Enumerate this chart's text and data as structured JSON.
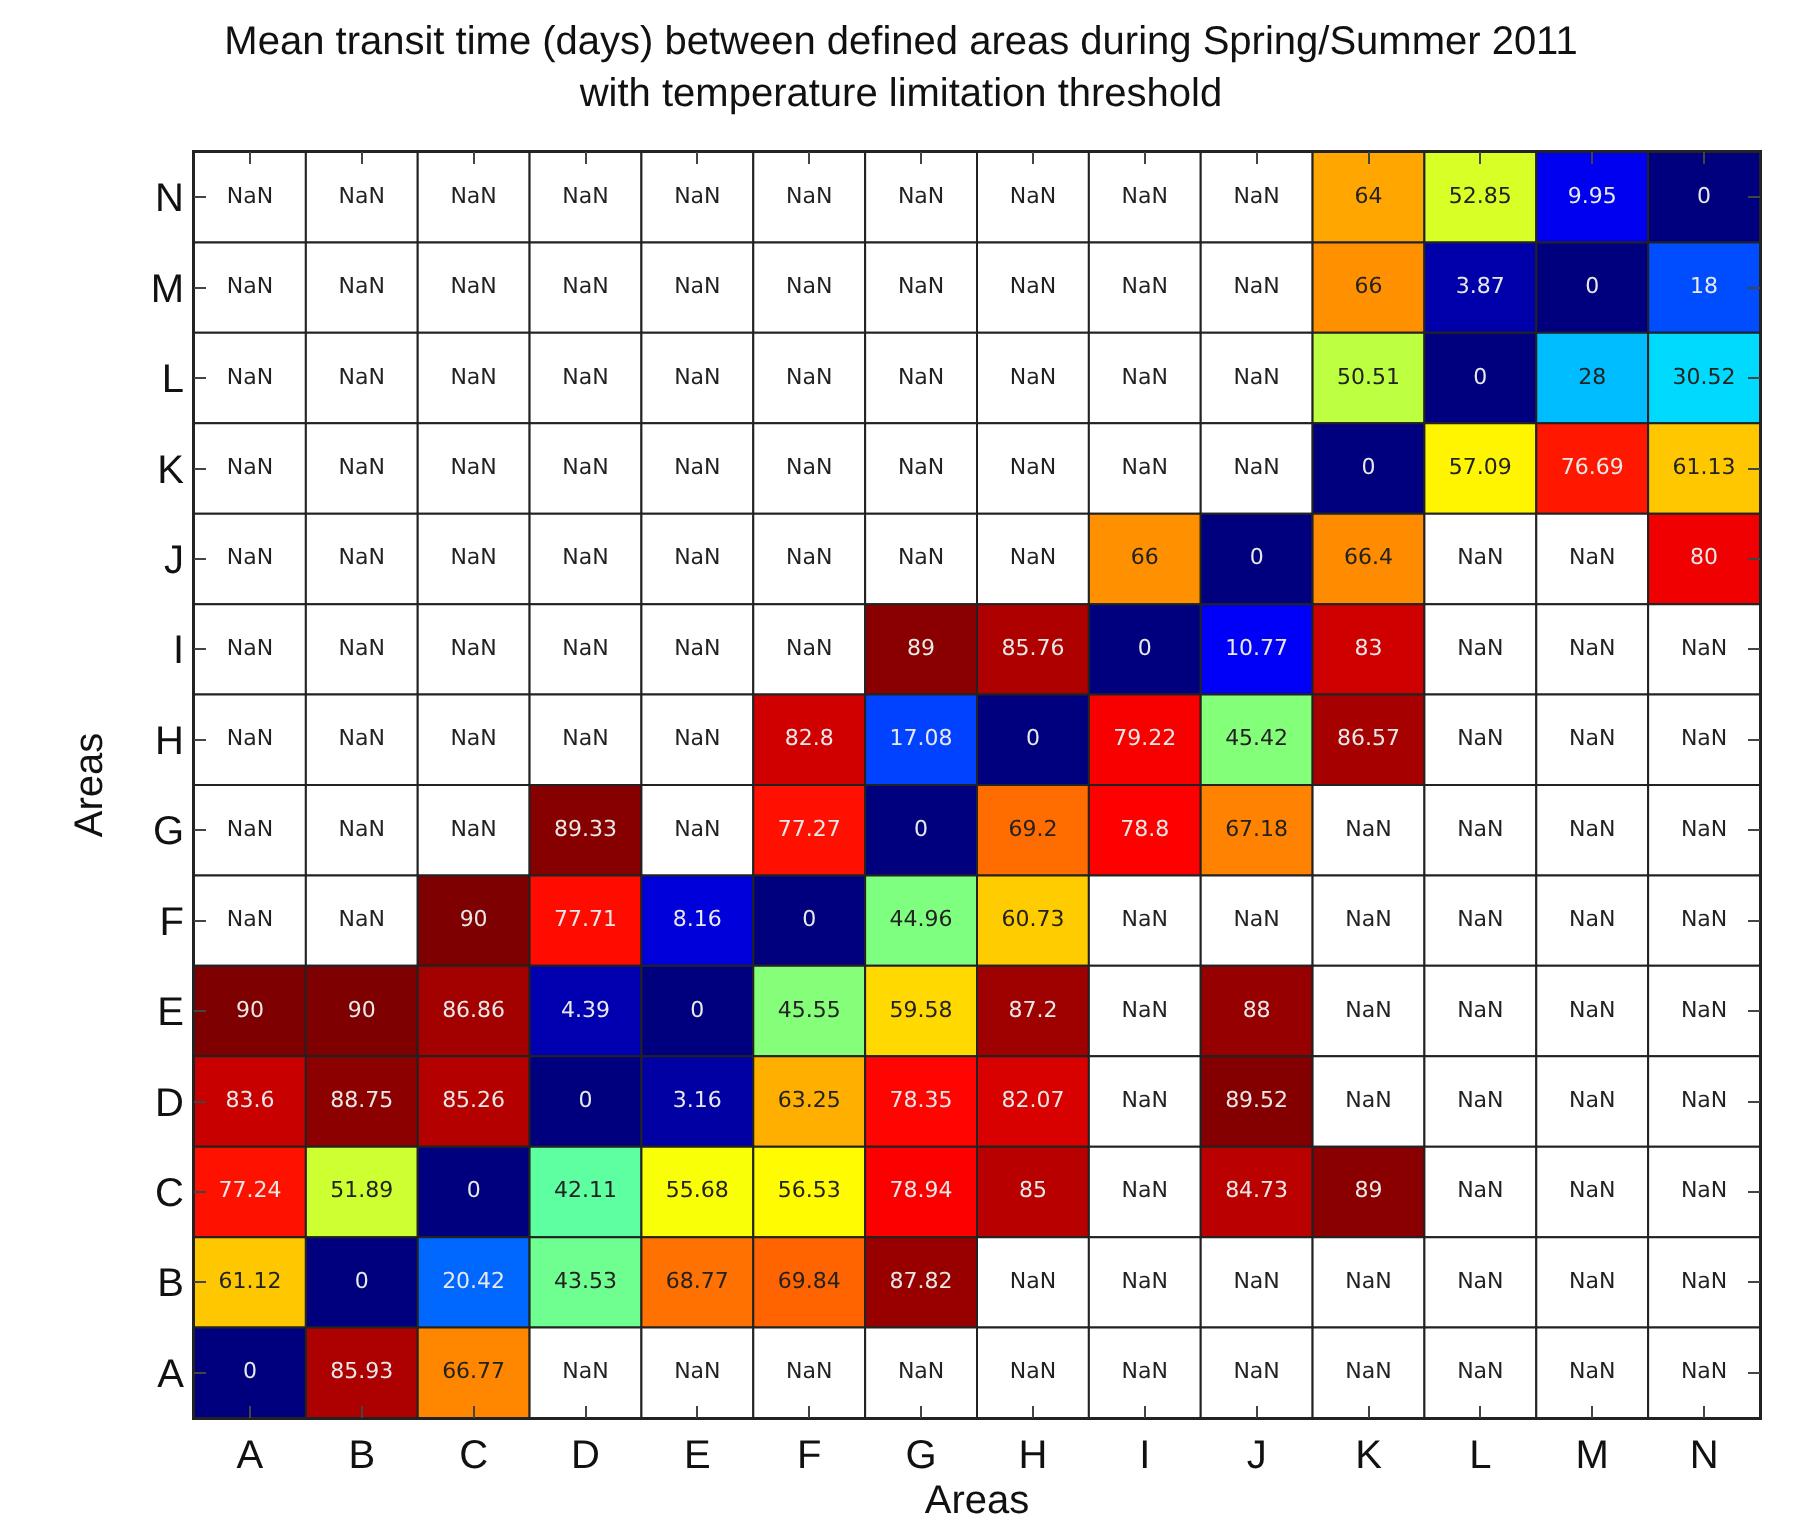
{
  "chart_data": {
    "type": "heatmap",
    "title": "Mean transit time (days) between defined areas during Spring/Summer 2011\nwith temperature limitation threshold",
    "xlabel": "Areas",
    "ylabel": "Areas",
    "categories": [
      "A",
      "B",
      "C",
      "D",
      "E",
      "F",
      "G",
      "H",
      "I",
      "J",
      "K",
      "L",
      "M",
      "N"
    ],
    "y_categories": [
      "N",
      "M",
      "L",
      "K",
      "J",
      "I",
      "H",
      "G",
      "F",
      "E",
      "D",
      "C",
      "B",
      "A"
    ],
    "cells": [
      [
        null,
        null,
        null,
        null,
        null,
        null,
        null,
        null,
        null,
        null,
        64,
        52.85,
        9.95,
        0
      ],
      [
        null,
        null,
        null,
        null,
        null,
        null,
        null,
        null,
        null,
        null,
        66,
        3.87,
        0,
        18
      ],
      [
        null,
        null,
        null,
        null,
        null,
        null,
        null,
        null,
        null,
        null,
        50.51,
        0,
        28,
        30.52
      ],
      [
        null,
        null,
        null,
        null,
        null,
        null,
        null,
        null,
        null,
        null,
        0,
        57.09,
        76.69,
        61.13
      ],
      [
        null,
        null,
        null,
        null,
        null,
        null,
        null,
        null,
        66,
        0,
        66.4,
        null,
        null,
        80
      ],
      [
        null,
        null,
        null,
        null,
        null,
        null,
        89,
        85.76,
        0,
        10.77,
        83,
        null,
        null,
        null
      ],
      [
        null,
        null,
        null,
        null,
        null,
        82.8,
        17.08,
        0,
        79.22,
        45.42,
        86.57,
        null,
        null,
        null
      ],
      [
        null,
        null,
        null,
        89.33,
        null,
        77.27,
        0,
        69.2,
        78.8,
        67.18,
        null,
        null,
        null,
        null
      ],
      [
        null,
        null,
        90,
        77.71,
        8.16,
        0,
        44.96,
        60.73,
        null,
        null,
        null,
        null,
        null,
        null
      ],
      [
        90,
        90,
        86.86,
        4.39,
        0,
        45.55,
        59.58,
        87.2,
        null,
        88,
        null,
        null,
        null,
        null
      ],
      [
        83.6,
        88.75,
        85.26,
        0,
        3.16,
        63.25,
        78.35,
        82.07,
        null,
        89.52,
        null,
        null,
        null,
        null
      ],
      [
        77.24,
        51.89,
        0,
        42.11,
        55.68,
        56.53,
        78.94,
        85,
        null,
        84.73,
        89,
        null,
        null,
        null
      ],
      [
        61.12,
        0,
        20.42,
        43.53,
        68.77,
        69.84,
        87.82,
        null,
        null,
        null,
        null,
        null,
        null,
        null
      ],
      [
        0,
        85.93,
        66.77,
        null,
        null,
        null,
        null,
        null,
        null,
        null,
        null,
        null,
        null,
        null
      ]
    ],
    "cell_labels": [
      [
        "NaN",
        "NaN",
        "NaN",
        "NaN",
        "NaN",
        "NaN",
        "NaN",
        "NaN",
        "NaN",
        "NaN",
        "64",
        "52.85",
        "9.95",
        "0"
      ],
      [
        "NaN",
        "NaN",
        "NaN",
        "NaN",
        "NaN",
        "NaN",
        "NaN",
        "NaN",
        "NaN",
        "NaN",
        "66",
        "3.87",
        "0",
        "18"
      ],
      [
        "NaN",
        "NaN",
        "NaN",
        "NaN",
        "NaN",
        "NaN",
        "NaN",
        "NaN",
        "NaN",
        "NaN",
        "50.51",
        "0",
        "28",
        "30.52"
      ],
      [
        "NaN",
        "NaN",
        "NaN",
        "NaN",
        "NaN",
        "NaN",
        "NaN",
        "NaN",
        "NaN",
        "NaN",
        "0",
        "57.09",
        "76.69",
        "61.13"
      ],
      [
        "NaN",
        "NaN",
        "NaN",
        "NaN",
        "NaN",
        "NaN",
        "NaN",
        "NaN",
        "66",
        "0",
        "66.4",
        "NaN",
        "NaN",
        "80"
      ],
      [
        "NaN",
        "NaN",
        "NaN",
        "NaN",
        "NaN",
        "NaN",
        "89",
        "85.76",
        "0",
        "10.77",
        "83",
        "NaN",
        "NaN",
        "NaN"
      ],
      [
        "NaN",
        "NaN",
        "NaN",
        "NaN",
        "NaN",
        "82.8",
        "17.08",
        "0",
        "79.22",
        "45.42",
        "86.57",
        "NaN",
        "NaN",
        "NaN"
      ],
      [
        "NaN",
        "NaN",
        "NaN",
        "89.33",
        "NaN",
        "77.27",
        "0",
        "69.2",
        "78.8",
        "67.18",
        "NaN",
        "NaN",
        "NaN",
        "NaN"
      ],
      [
        "NaN",
        "NaN",
        "90",
        "77.71",
        "8.16",
        "0",
        "44.96",
        "60.73",
        "NaN",
        "NaN",
        "NaN",
        "NaN",
        "NaN",
        "NaN"
      ],
      [
        "90",
        "90",
        "86.86",
        "4.39",
        "0",
        "45.55",
        "59.58",
        "87.2",
        "NaN",
        "88",
        "NaN",
        "NaN",
        "NaN",
        "NaN"
      ],
      [
        "83.6",
        "88.75",
        "85.26",
        "0",
        "3.16",
        "63.25",
        "78.35",
        "82.07",
        "NaN",
        "89.52",
        "NaN",
        "NaN",
        "NaN",
        "NaN"
      ],
      [
        "77.24",
        "51.89",
        "0",
        "42.11",
        "55.68",
        "56.53",
        "78.94",
        "85",
        "NaN",
        "84.73",
        "89",
        "NaN",
        "NaN",
        "NaN"
      ],
      [
        "61.12",
        "0",
        "20.42",
        "43.53",
        "68.77",
        "69.84",
        "87.82",
        "NaN",
        "NaN",
        "NaN",
        "NaN",
        "NaN",
        "NaN",
        "NaN"
      ],
      [
        "0",
        "85.93",
        "66.77",
        "NaN",
        "NaN",
        "NaN",
        "NaN",
        "NaN",
        "NaN",
        "NaN",
        "NaN",
        "NaN",
        "NaN",
        "NaN"
      ]
    ]
  }
}
